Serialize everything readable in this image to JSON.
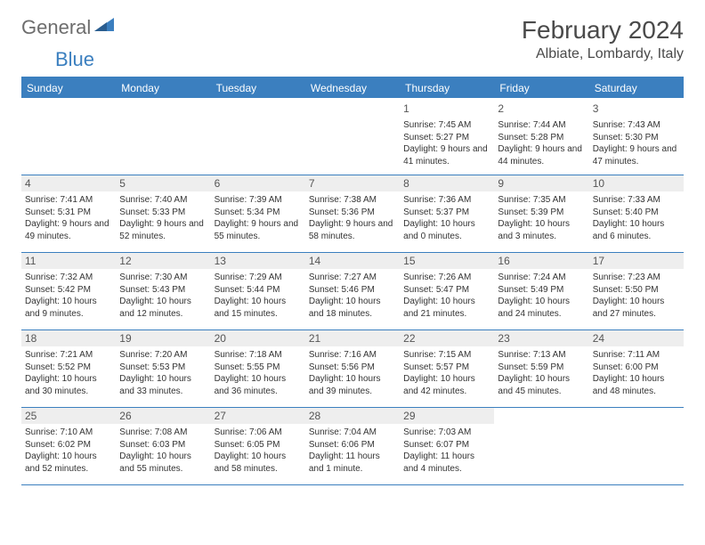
{
  "logo": {
    "general": "General",
    "blue": "Blue"
  },
  "title": "February 2024",
  "location": "Albiate, Lombardy, Italy",
  "colors": {
    "accent": "#3b7fbf",
    "header_text": "#ffffff",
    "grey_band": "#eeeeee",
    "text": "#333333",
    "logo_grey": "#6d6d6d"
  },
  "day_names": [
    "Sunday",
    "Monday",
    "Tuesday",
    "Wednesday",
    "Thursday",
    "Friday",
    "Saturday"
  ],
  "weeks": [
    [
      null,
      null,
      null,
      null,
      {
        "n": "1",
        "sr": "7:45 AM",
        "ss": "5:27 PM",
        "dl": "9 hours and 41 minutes."
      },
      {
        "n": "2",
        "sr": "7:44 AM",
        "ss": "5:28 PM",
        "dl": "9 hours and 44 minutes."
      },
      {
        "n": "3",
        "sr": "7:43 AM",
        "ss": "5:30 PM",
        "dl": "9 hours and 47 minutes."
      }
    ],
    [
      {
        "n": "4",
        "sr": "7:41 AM",
        "ss": "5:31 PM",
        "dl": "9 hours and 49 minutes."
      },
      {
        "n": "5",
        "sr": "7:40 AM",
        "ss": "5:33 PM",
        "dl": "9 hours and 52 minutes."
      },
      {
        "n": "6",
        "sr": "7:39 AM",
        "ss": "5:34 PM",
        "dl": "9 hours and 55 minutes."
      },
      {
        "n": "7",
        "sr": "7:38 AM",
        "ss": "5:36 PM",
        "dl": "9 hours and 58 minutes."
      },
      {
        "n": "8",
        "sr": "7:36 AM",
        "ss": "5:37 PM",
        "dl": "10 hours and 0 minutes."
      },
      {
        "n": "9",
        "sr": "7:35 AM",
        "ss": "5:39 PM",
        "dl": "10 hours and 3 minutes."
      },
      {
        "n": "10",
        "sr": "7:33 AM",
        "ss": "5:40 PM",
        "dl": "10 hours and 6 minutes."
      }
    ],
    [
      {
        "n": "11",
        "sr": "7:32 AM",
        "ss": "5:42 PM",
        "dl": "10 hours and 9 minutes."
      },
      {
        "n": "12",
        "sr": "7:30 AM",
        "ss": "5:43 PM",
        "dl": "10 hours and 12 minutes."
      },
      {
        "n": "13",
        "sr": "7:29 AM",
        "ss": "5:44 PM",
        "dl": "10 hours and 15 minutes."
      },
      {
        "n": "14",
        "sr": "7:27 AM",
        "ss": "5:46 PM",
        "dl": "10 hours and 18 minutes."
      },
      {
        "n": "15",
        "sr": "7:26 AM",
        "ss": "5:47 PM",
        "dl": "10 hours and 21 minutes."
      },
      {
        "n": "16",
        "sr": "7:24 AM",
        "ss": "5:49 PM",
        "dl": "10 hours and 24 minutes."
      },
      {
        "n": "17",
        "sr": "7:23 AM",
        "ss": "5:50 PM",
        "dl": "10 hours and 27 minutes."
      }
    ],
    [
      {
        "n": "18",
        "sr": "7:21 AM",
        "ss": "5:52 PM",
        "dl": "10 hours and 30 minutes."
      },
      {
        "n": "19",
        "sr": "7:20 AM",
        "ss": "5:53 PM",
        "dl": "10 hours and 33 minutes."
      },
      {
        "n": "20",
        "sr": "7:18 AM",
        "ss": "5:55 PM",
        "dl": "10 hours and 36 minutes."
      },
      {
        "n": "21",
        "sr": "7:16 AM",
        "ss": "5:56 PM",
        "dl": "10 hours and 39 minutes."
      },
      {
        "n": "22",
        "sr": "7:15 AM",
        "ss": "5:57 PM",
        "dl": "10 hours and 42 minutes."
      },
      {
        "n": "23",
        "sr": "7:13 AM",
        "ss": "5:59 PM",
        "dl": "10 hours and 45 minutes."
      },
      {
        "n": "24",
        "sr": "7:11 AM",
        "ss": "6:00 PM",
        "dl": "10 hours and 48 minutes."
      }
    ],
    [
      {
        "n": "25",
        "sr": "7:10 AM",
        "ss": "6:02 PM",
        "dl": "10 hours and 52 minutes."
      },
      {
        "n": "26",
        "sr": "7:08 AM",
        "ss": "6:03 PM",
        "dl": "10 hours and 55 minutes."
      },
      {
        "n": "27",
        "sr": "7:06 AM",
        "ss": "6:05 PM",
        "dl": "10 hours and 58 minutes."
      },
      {
        "n": "28",
        "sr": "7:04 AM",
        "ss": "6:06 PM",
        "dl": "11 hours and 1 minute."
      },
      {
        "n": "29",
        "sr": "7:03 AM",
        "ss": "6:07 PM",
        "dl": "11 hours and 4 minutes."
      },
      null,
      null
    ]
  ],
  "labels": {
    "sunrise": "Sunrise:",
    "sunset": "Sunset:",
    "daylight": "Daylight:"
  }
}
